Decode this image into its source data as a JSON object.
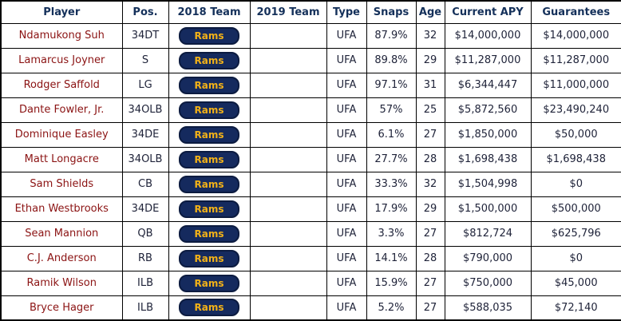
{
  "colors": {
    "header_text": "#14305a",
    "player_link": "#8b1313",
    "team_button_bg": "#152a5e",
    "team_button_text": "#f3b218",
    "cell_border": "#000000"
  },
  "table": {
    "columns": [
      "Player",
      "Pos.",
      "2018 Team",
      "2019 Team",
      "Type",
      "Snaps",
      "Age",
      "Current APY",
      "Guarantees"
    ],
    "rows": [
      {
        "player": "Ndamukong Suh",
        "pos": "34DT",
        "team2018": "Rams",
        "team2019": "",
        "type": "UFA",
        "snaps": "87.9%",
        "age": "32",
        "apy": "$14,000,000",
        "guarantees": "$14,000,000"
      },
      {
        "player": "Lamarcus Joyner",
        "pos": "S",
        "team2018": "Rams",
        "team2019": "",
        "type": "UFA",
        "snaps": "89.8%",
        "age": "29",
        "apy": "$11,287,000",
        "guarantees": "$11,287,000"
      },
      {
        "player": "Rodger Saffold",
        "pos": "LG",
        "team2018": "Rams",
        "team2019": "",
        "type": "UFA",
        "snaps": "97.1%",
        "age": "31",
        "apy": "$6,344,447",
        "guarantees": "$11,000,000"
      },
      {
        "player": "Dante Fowler, Jr.",
        "pos": "34OLB",
        "team2018": "Rams",
        "team2019": "",
        "type": "UFA",
        "snaps": "57%",
        "age": "25",
        "apy": "$5,872,560",
        "guarantees": "$23,490,240"
      },
      {
        "player": "Dominique Easley",
        "pos": "34DE",
        "team2018": "Rams",
        "team2019": "",
        "type": "UFA",
        "snaps": "6.1%",
        "age": "27",
        "apy": "$1,850,000",
        "guarantees": "$50,000"
      },
      {
        "player": "Matt Longacre",
        "pos": "34OLB",
        "team2018": "Rams",
        "team2019": "",
        "type": "UFA",
        "snaps": "27.7%",
        "age": "28",
        "apy": "$1,698,438",
        "guarantees": "$1,698,438"
      },
      {
        "player": "Sam Shields",
        "pos": "CB",
        "team2018": "Rams",
        "team2019": "",
        "type": "UFA",
        "snaps": "33.3%",
        "age": "32",
        "apy": "$1,504,998",
        "guarantees": "$0"
      },
      {
        "player": "Ethan Westbrooks",
        "pos": "34DE",
        "team2018": "Rams",
        "team2019": "",
        "type": "UFA",
        "snaps": "17.9%",
        "age": "29",
        "apy": "$1,500,000",
        "guarantees": "$500,000"
      },
      {
        "player": "Sean Mannion",
        "pos": "QB",
        "team2018": "Rams",
        "team2019": "",
        "type": "UFA",
        "snaps": "3.3%",
        "age": "27",
        "apy": "$812,724",
        "guarantees": "$625,796"
      },
      {
        "player": "C.J. Anderson",
        "pos": "RB",
        "team2018": "Rams",
        "team2019": "",
        "type": "UFA",
        "snaps": "14.1%",
        "age": "28",
        "apy": "$790,000",
        "guarantees": "$0"
      },
      {
        "player": "Ramik Wilson",
        "pos": "ILB",
        "team2018": "Rams",
        "team2019": "",
        "type": "UFA",
        "snaps": "15.9%",
        "age": "27",
        "apy": "$750,000",
        "guarantees": "$45,000"
      },
      {
        "player": "Bryce Hager",
        "pos": "ILB",
        "team2018": "Rams",
        "team2019": "",
        "type": "UFA",
        "snaps": "5.2%",
        "age": "27",
        "apy": "$588,035",
        "guarantees": "$72,140"
      }
    ]
  }
}
